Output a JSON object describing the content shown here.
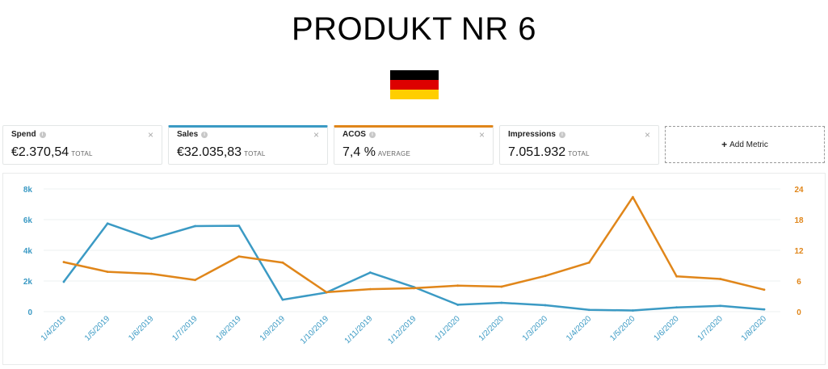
{
  "page": {
    "title": "PRODUKT NR 6"
  },
  "flag": {
    "name": "germany-flag",
    "colors": [
      "#000000",
      "#dd0000",
      "#ffce00"
    ]
  },
  "metrics": [
    {
      "label": "Spend",
      "value": "€2.370,54",
      "unit": "TOTAL",
      "active": false,
      "accent": ""
    },
    {
      "label": "Sales",
      "value": "€32.035,83",
      "unit": "TOTAL",
      "active": true,
      "accent": "#3b9ac4"
    },
    {
      "label": "ACOS",
      "value": "7,4 %",
      "unit": "AVERAGE",
      "active": true,
      "accent": "#e0861a"
    },
    {
      "label": "Impressions",
      "value": "7.051.932",
      "unit": "TOTAL",
      "active": false,
      "accent": ""
    }
  ],
  "add_metric": {
    "label": "Add Metric",
    "icon": "plus-icon"
  },
  "icons": {
    "info": "i",
    "close": "×"
  },
  "chart_data": {
    "type": "line",
    "categories": [
      "1/4/2019",
      "1/5/2019",
      "1/6/2019",
      "1/7/2019",
      "1/8/2019",
      "1/9/2019",
      "1/10/2019",
      "1/11/2019",
      "1/12/2019",
      "1/1/2020",
      "1/2/2020",
      "1/3/2020",
      "1/4/2020",
      "1/5/2020",
      "1/6/2020",
      "1/7/2020",
      "1/8/2020"
    ],
    "series": [
      {
        "name": "Sales",
        "axis": "left",
        "color": "#3b9ac4",
        "values": [
          1950,
          5750,
          4750,
          5580,
          5600,
          780,
          1250,
          2550,
          1600,
          450,
          580,
          420,
          120,
          80,
          280,
          380,
          150
        ]
      },
      {
        "name": "ACOS",
        "axis": "right",
        "color": "#e0861a",
        "values": [
          9.7,
          7.8,
          7.4,
          6.2,
          10.8,
          9.6,
          3.8,
          4.4,
          4.6,
          5.1,
          4.9,
          7.0,
          9.6,
          22.4,
          6.9,
          6.4,
          4.3
        ]
      }
    ],
    "y_left": {
      "ticks": [
        0,
        2000,
        4000,
        6000,
        8000
      ],
      "tick_labels": [
        "0",
        "2k",
        "4k",
        "6k",
        "8k"
      ],
      "range": [
        0,
        8000
      ],
      "color": "#3b9ac4"
    },
    "y_right": {
      "ticks": [
        0,
        6,
        12,
        18,
        24
      ],
      "tick_labels": [
        "0",
        "6",
        "12",
        "18",
        "24"
      ],
      "range": [
        0,
        24
      ],
      "color": "#e0861a"
    },
    "grid": true
  }
}
